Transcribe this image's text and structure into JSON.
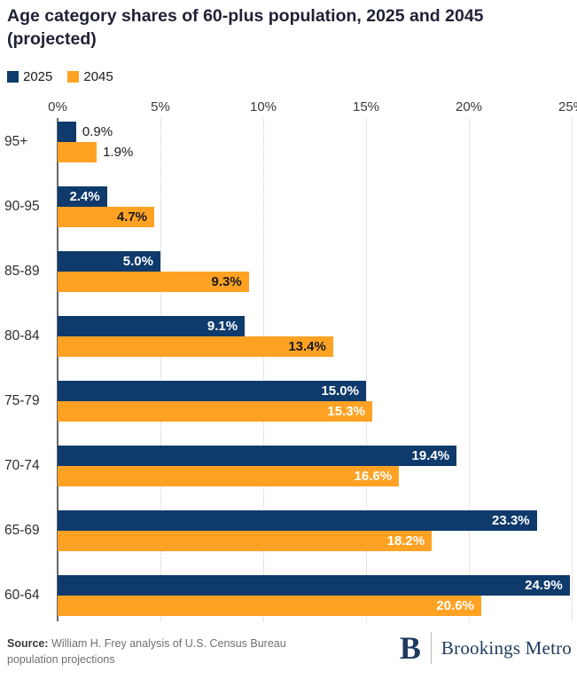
{
  "title": "Age category shares of 60-plus population, 2025 and 2045 (projected)",
  "legend": [
    {
      "label": "2025",
      "color": "#0e3a6c"
    },
    {
      "label": "2045",
      "color": "#ffa224"
    }
  ],
  "colors": {
    "navy": "#0e3a6c",
    "orange": "#ffa224",
    "label_dark": "#1a1a1a",
    "label_white": "#ffffff",
    "axis_line": "#666666",
    "gridline": "#cbcbcb"
  },
  "chart_data": {
    "type": "bar",
    "orientation": "horizontal",
    "title": "Age category shares of 60-plus population, 2025 and 2045 (projected)",
    "categories": [
      "95+",
      "90-95",
      "85-89",
      "80-84",
      "75-79",
      "70-74",
      "65-69",
      "60-64"
    ],
    "series": [
      {
        "name": "2025",
        "color": "#0e3a6c",
        "values": [
          0.9,
          2.4,
          5.0,
          9.1,
          15.0,
          19.4,
          23.3,
          24.9
        ],
        "labels": [
          "0.9%",
          "2.4%",
          "5.0%",
          "9.1%",
          "15.0%",
          "19.4%",
          "23.3%",
          "24.9%"
        ],
        "label_styles": [
          "outside-dark",
          "inside-white",
          "inside-white",
          "inside-white",
          "inside-white",
          "inside-white",
          "inside-white",
          "inside-white"
        ]
      },
      {
        "name": "2045",
        "color": "#ffa224",
        "values": [
          1.9,
          4.7,
          9.3,
          13.4,
          15.3,
          16.6,
          18.2,
          20.6
        ],
        "labels": [
          "1.9%",
          "4.7%",
          "9.3%",
          "13.4%",
          "15.3%",
          "16.6%",
          "18.2%",
          "20.6%"
        ],
        "label_styles": [
          "outside-dark",
          "inside-dark",
          "inside-dark",
          "inside-dark",
          "inside-white",
          "inside-white",
          "inside-white",
          "inside-white"
        ]
      }
    ],
    "x_ticks": [
      "0%",
      "5%",
      "10%",
      "15%",
      "20%",
      "25%"
    ],
    "xlim": [
      0,
      25
    ],
    "value_suffix": "%",
    "grid": "vertical-dotted",
    "legend_position": "top-left"
  },
  "footer": {
    "source_label": "Source:",
    "source_text": "William H. Frey analysis of U.S. Census Bureau population projections"
  },
  "logo": {
    "initial": "B",
    "wordmark": "Brookings Metro"
  }
}
